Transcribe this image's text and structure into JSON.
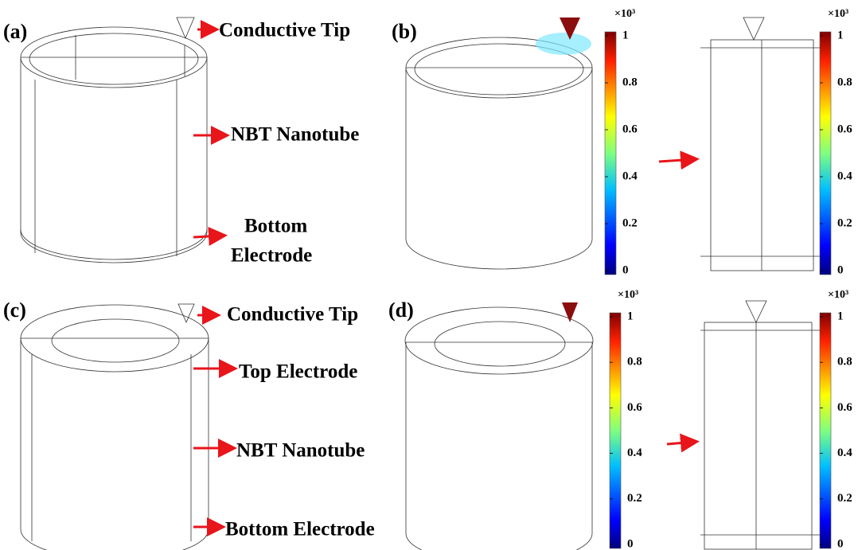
{
  "panels": [
    {
      "label": "(a)",
      "annotations": [
        "Conductive Tip",
        "NBT Nanotube",
        "Bottom",
        "Electrode"
      ]
    },
    {
      "label": "(b)"
    },
    {
      "label": "(c)",
      "annotations": [
        "Conductive Tip",
        "Top Electrode",
        "NBT Nanotube",
        "Bottom Electrode"
      ]
    },
    {
      "label": "(d)"
    }
  ],
  "colorbars": [
    {
      "multiplier": "×10³",
      "ticks": [
        0,
        0.2,
        0.4,
        0.6,
        0.8,
        1
      ]
    },
    {
      "multiplier": "×10³",
      "ticks": [
        0,
        0.2,
        0.4,
        0.6,
        0.8,
        1
      ]
    },
    {
      "multiplier": "×10³",
      "ticks": [
        0,
        0.2,
        0.4,
        0.6,
        0.8,
        1
      ]
    },
    {
      "multiplier": "×10³",
      "ticks": [
        0,
        0.2,
        0.4,
        0.6,
        0.8,
        1
      ]
    }
  ]
}
